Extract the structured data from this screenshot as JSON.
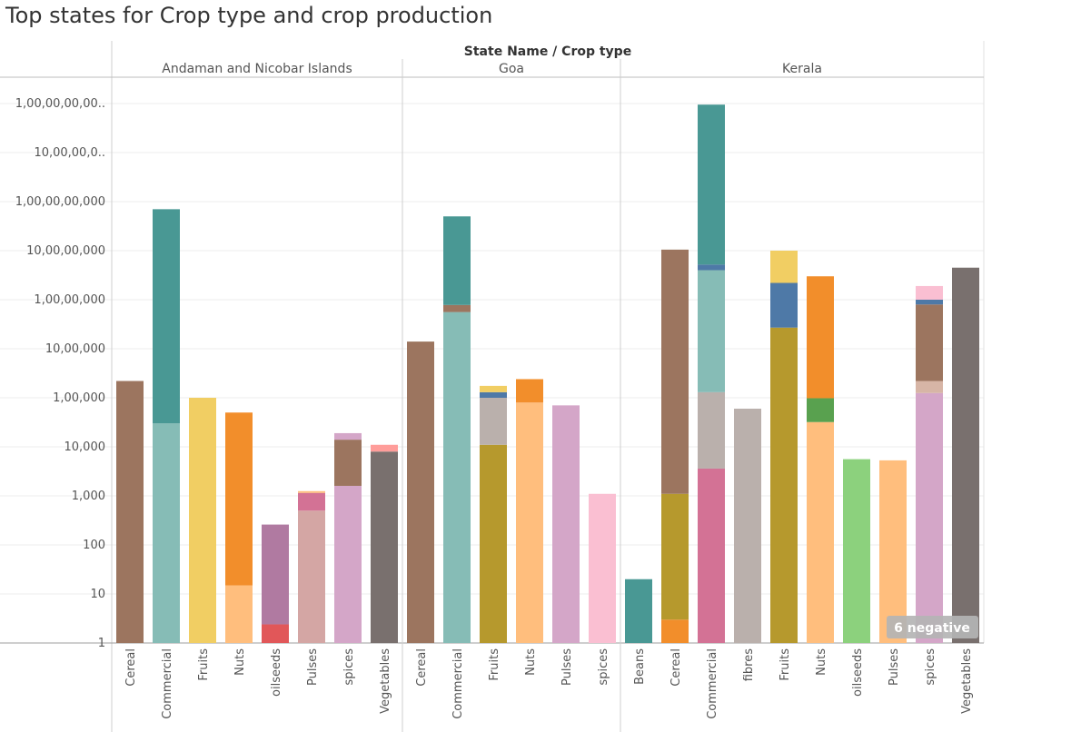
{
  "title": "Top states for Crop type and crop production",
  "chart_data": {
    "type": "bar",
    "stacked": true,
    "scale": "log",
    "header": "State Name  /  Crop type",
    "y_ticks": [
      1,
      10,
      100,
      1000,
      10000,
      100000,
      1000000,
      10000000,
      100000000,
      1000000000,
      10000000000,
      100000000000
    ],
    "y_tick_labels": [
      "1",
      "10",
      "100",
      "1,000",
      "10,000",
      "1,00,000",
      "10,00,000",
      "1,00,00,000",
      "10,00,00,000",
      "1,00,00,00,000",
      "10,00,00,0..",
      "1,00,00,00,00.."
    ],
    "ylim": [
      1,
      200000000000
    ],
    "grid": true,
    "colors": {
      "brown": "#9c755f",
      "teal": "#499894",
      "lightteal": "#86bcb6",
      "yellow": "#f1ce63",
      "orange": "#f28e2b",
      "peach": "#ffbe7d",
      "purple": "#b07aa1",
      "red": "#e15759",
      "pink": "#d37295",
      "tan": "#d4a6a4",
      "lilac": "#d4a6c8",
      "taupe": "#79706e",
      "salmon": "#ff9d9a",
      "olive": "#b6992d",
      "greige": "#bab0ac",
      "blue": "#4e79a7",
      "lightpink": "#fabfd2",
      "green": "#59a14f",
      "lightgreen": "#8cd17d",
      "beige": "#d7b5a6"
    },
    "states": [
      {
        "name": "Andaman and Nicobar Islands",
        "crops": [
          {
            "label": "Cereal",
            "segments": [
              {
                "top": 220000,
                "color": "brown"
              }
            ]
          },
          {
            "label": "Commercial",
            "segments": [
              {
                "top": 30000,
                "color": "lightteal"
              },
              {
                "top": 700000000,
                "color": "teal"
              }
            ]
          },
          {
            "label": "Fruits",
            "segments": [
              {
                "top": 100000,
                "color": "yellow"
              }
            ]
          },
          {
            "label": "Nuts",
            "segments": [
              {
                "top": 15,
                "color": "peach"
              },
              {
                "top": 50000,
                "color": "orange"
              }
            ]
          },
          {
            "label": "oilseeds",
            "segments": [
              {
                "top": 2.4,
                "color": "red"
              },
              {
                "top": 260,
                "color": "purple"
              }
            ]
          },
          {
            "label": "Pulses",
            "segments": [
              {
                "top": 500,
                "color": "tan"
              },
              {
                "top": 1150,
                "color": "pink"
              },
              {
                "top": 1250,
                "color": "peach"
              }
            ]
          },
          {
            "label": "spices",
            "segments": [
              {
                "top": 1600,
                "color": "lilac"
              },
              {
                "top": 14000,
                "color": "brown"
              },
              {
                "top": 19000,
                "color": "lilac"
              }
            ]
          },
          {
            "label": "Vegetables",
            "segments": [
              {
                "top": 8000,
                "color": "taupe"
              },
              {
                "top": 11000,
                "color": "salmon"
              }
            ]
          }
        ]
      },
      {
        "name": "Goa",
        "crops": [
          {
            "label": "Cereal",
            "segments": [
              {
                "top": 1400000,
                "color": "brown"
              }
            ]
          },
          {
            "label": "Commercial",
            "segments": [
              {
                "top": 5600000,
                "color": "lightteal"
              },
              {
                "top": 7800000,
                "color": "brown"
              },
              {
                "top": 500000000,
                "color": "teal"
              }
            ]
          },
          {
            "label": "Fruits",
            "segments": [
              {
                "top": 11000,
                "color": "olive"
              },
              {
                "top": 100000,
                "color": "greige"
              },
              {
                "top": 130000,
                "color": "blue"
              },
              {
                "top": 175000,
                "color": "yellow"
              }
            ]
          },
          {
            "label": "Nuts",
            "segments": [
              {
                "top": 80000,
                "color": "peach"
              },
              {
                "top": 240000,
                "color": "orange"
              }
            ]
          },
          {
            "label": "Pulses",
            "segments": [
              {
                "top": 70000,
                "color": "lilac"
              }
            ]
          },
          {
            "label": "spices",
            "segments": [
              {
                "top": 1100,
                "color": "lightpink"
              }
            ]
          }
        ]
      },
      {
        "name": "Kerala",
        "crops": [
          {
            "label": "Beans",
            "segments": [
              {
                "top": 20,
                "color": "teal"
              }
            ]
          },
          {
            "label": "Cereal",
            "segments": [
              {
                "top": 3,
                "color": "orange"
              },
              {
                "top": 1100,
                "color": "olive"
              },
              {
                "top": 105000000,
                "color": "brown"
              }
            ]
          },
          {
            "label": "Commercial",
            "segments": [
              {
                "top": 3600,
                "color": "pink"
              },
              {
                "top": 130000,
                "color": "greige"
              },
              {
                "top": 40000000,
                "color": "lightteal"
              },
              {
                "top": 52000000,
                "color": "blue"
              },
              {
                "top": 95000000000,
                "color": "teal"
              }
            ]
          },
          {
            "label": "fibres",
            "segments": [
              {
                "top": 60000,
                "color": "greige"
              }
            ]
          },
          {
            "label": "Fruits",
            "segments": [
              {
                "top": 2700000,
                "color": "olive"
              },
              {
                "top": 22000000,
                "color": "blue"
              },
              {
                "top": 100000000,
                "color": "yellow"
              }
            ]
          },
          {
            "label": "Nuts",
            "segments": [
              {
                "top": 32000,
                "color": "peach"
              },
              {
                "top": 98000,
                "color": "green"
              },
              {
                "top": 30000000,
                "color": "orange"
              }
            ]
          },
          {
            "label": "oilseeds",
            "segments": [
              {
                "top": 5600,
                "color": "lightgreen"
              }
            ]
          },
          {
            "label": "Pulses",
            "segments": [
              {
                "top": 5300,
                "color": "peach"
              }
            ]
          },
          {
            "label": "spices",
            "segments": [
              {
                "top": 125000,
                "color": "lilac"
              },
              {
                "top": 220000,
                "color": "beige"
              },
              {
                "top": 8000000,
                "color": "brown"
              },
              {
                "top": 10000000,
                "color": "blue"
              },
              {
                "top": 19000000,
                "color": "lightpink"
              }
            ]
          },
          {
            "label": "Vegetables",
            "segments": [
              {
                "top": 45000000,
                "color": "taupe"
              }
            ]
          }
        ]
      }
    ],
    "annotation": "6 negative"
  }
}
